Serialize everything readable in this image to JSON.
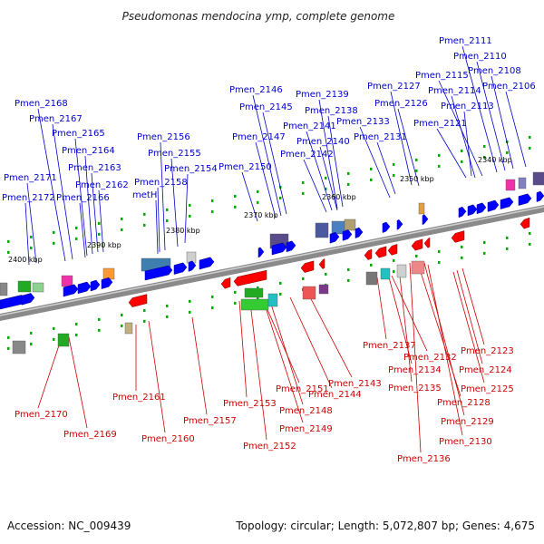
{
  "title": "Pseudomonas mendocina ymp, complete genome",
  "footer": {
    "accession": "Accession: NC_009439",
    "topology": "Topology: circular; Length: 5,072,807 bp; Genes: 4,675"
  },
  "colors": {
    "forward_label": "#0000cc",
    "reverse_label": "#cc0000",
    "forward_gene": "#0000ff",
    "reverse_gene": "#ff0000",
    "backbone": "#888888",
    "tick": "#00aa00"
  },
  "kbp_labels": [
    "2400 kbp",
    "2390 kbp",
    "2380 kbp",
    "2370 kbp",
    "2360 kbp",
    "2350 kbp",
    "2340 kbp"
  ],
  "forward_labels": [
    "Pmen_2111",
    "Pmen_2110",
    "Pmen_2108",
    "Pmen_2115",
    "Pmen_2106",
    "Pmen_2127",
    "Pmen_2114",
    "Pmen_2146",
    "Pmen_2139",
    "Pmen_2168",
    "Pmen_2126",
    "Pmen_2113",
    "Pmen_2145",
    "Pmen_2138",
    "Pmen_2167",
    "Pmen_2141",
    "Pmen_2133",
    "Pmen_2121",
    "Pmen_2165",
    "Pmen_2156",
    "Pmen_2147",
    "Pmen_2131",
    "Pmen_2140",
    "Pmen_2164",
    "Pmen_2155",
    "Pmen_2142",
    "Pmen_2163",
    "Pmen_2154",
    "Pmen_2150",
    "Pmen_2171",
    "Pmen_2158",
    "Pmen_2162",
    "Pmen_2172",
    "Pmen_2166",
    "metH"
  ],
  "reverse_labels": [
    "Pmen_2137",
    "Pmen_2123",
    "Pmen_2132",
    "Pmen_2134",
    "Pmen_2124",
    "Pmen_2161",
    "Pmen_2151",
    "Pmen_2143",
    "Pmen_2135",
    "Pmen_2125",
    "Pmen_2153",
    "Pmen_2144",
    "Pmen_2128",
    "Pmen_2170",
    "Pmen_2148",
    "Pmen_2157",
    "Pmen_2129",
    "Pmen_2149",
    "Pmen_2169",
    "Pmen_2160",
    "Pmen_2130",
    "Pmen_2152",
    "Pmen_2136"
  ]
}
